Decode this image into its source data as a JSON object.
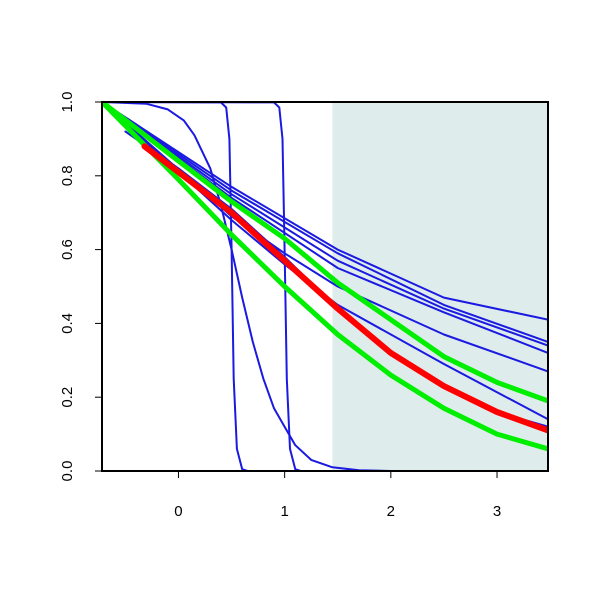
{
  "chart_data": {
    "type": "line",
    "title": "",
    "xlabel": "",
    "ylabel": "",
    "xlim": [
      -0.72,
      3.48
    ],
    "ylim": [
      0,
      1
    ],
    "x_ticks": [
      0,
      1,
      2,
      3
    ],
    "x_tick_labels": [
      "0",
      "1",
      "2",
      "3"
    ],
    "y_ticks": [
      0,
      0.2,
      0.4,
      0.6,
      0.8,
      1
    ],
    "y_tick_labels": [
      "0.0",
      "0.2",
      "0.4",
      "0.6",
      "0.8",
      "1.0"
    ],
    "grid": false,
    "legend": "none",
    "shaded_region": {
      "x_from": 1.45,
      "x_to": 3.48,
      "color": "#deecec"
    },
    "colors": {
      "blue": "#1a1ae0",
      "red": "#ff0000",
      "green": "#00ee00"
    },
    "series": [
      {
        "color_key": "blue",
        "width": 2,
        "points": [
          [
            -0.72,
            1
          ],
          [
            0.4,
            0.999
          ],
          [
            0.45,
            0.985
          ],
          [
            0.48,
            0.9
          ],
          [
            0.5,
            0.6
          ],
          [
            0.52,
            0.25
          ],
          [
            0.55,
            0.06
          ],
          [
            0.6,
            0.005
          ],
          [
            0.65,
            0
          ],
          [
            3.48,
            0
          ]
        ]
      },
      {
        "color_key": "blue",
        "width": 2,
        "points": [
          [
            -0.72,
            1
          ],
          [
            0.9,
            0.999
          ],
          [
            0.95,
            0.985
          ],
          [
            0.98,
            0.9
          ],
          [
            1.0,
            0.6
          ],
          [
            1.02,
            0.25
          ],
          [
            1.05,
            0.06
          ],
          [
            1.1,
            0.005
          ],
          [
            1.15,
            0
          ],
          [
            3.48,
            0
          ]
        ]
      },
      {
        "color_key": "blue",
        "width": 2,
        "points": [
          [
            -0.72,
            1
          ],
          [
            -0.3,
            0.995
          ],
          [
            -0.1,
            0.98
          ],
          [
            0.05,
            0.95
          ],
          [
            0.15,
            0.91
          ],
          [
            0.3,
            0.82
          ],
          [
            0.4,
            0.72
          ],
          [
            0.5,
            0.6
          ],
          [
            0.6,
            0.47
          ],
          [
            0.7,
            0.35
          ],
          [
            0.8,
            0.25
          ],
          [
            0.9,
            0.17
          ],
          [
            1.0,
            0.12
          ],
          [
            1.1,
            0.07
          ],
          [
            1.25,
            0.03
          ],
          [
            1.45,
            0.01
          ],
          [
            1.7,
            0.002
          ],
          [
            2.0,
            0
          ],
          [
            3.48,
            0
          ]
        ]
      },
      {
        "color_key": "blue",
        "width": 2,
        "points": [
          [
            -0.72,
            1
          ],
          [
            0.5,
            0.75
          ],
          [
            1.5,
            0.57
          ],
          [
            2.5,
            0.44
          ],
          [
            3.48,
            0.34
          ]
        ]
      },
      {
        "color_key": "blue",
        "width": 2,
        "points": [
          [
            -0.72,
            1
          ],
          [
            0.5,
            0.76
          ],
          [
            1.5,
            0.59
          ],
          [
            2.5,
            0.45
          ],
          [
            3.48,
            0.35
          ]
        ]
      },
      {
        "color_key": "blue",
        "width": 2,
        "points": [
          [
            -0.72,
            1
          ],
          [
            0.5,
            0.77
          ],
          [
            1.5,
            0.6
          ],
          [
            2.5,
            0.47
          ],
          [
            3.48,
            0.41
          ]
        ]
      },
      {
        "color_key": "blue",
        "width": 2,
        "points": [
          [
            -0.72,
            1
          ],
          [
            0.5,
            0.74
          ],
          [
            1.5,
            0.55
          ],
          [
            2.5,
            0.43
          ],
          [
            3.48,
            0.32
          ]
        ]
      },
      {
        "color_key": "blue",
        "width": 2,
        "points": [
          [
            -0.72,
            1
          ],
          [
            0.5,
            0.69
          ],
          [
            1.0,
            0.59
          ],
          [
            1.5,
            0.5
          ],
          [
            2.5,
            0.37
          ],
          [
            3.48,
            0.27
          ]
        ]
      },
      {
        "color_key": "blue",
        "width": 2,
        "points": [
          [
            -0.72,
            1
          ],
          [
            0.5,
            0.68
          ],
          [
            1.0,
            0.56
          ],
          [
            1.5,
            0.45
          ],
          [
            2.5,
            0.29
          ],
          [
            3.48,
            0.14
          ]
        ]
      },
      {
        "color_key": "blue",
        "width": 2,
        "points": [
          [
            -0.5,
            0.92
          ],
          [
            0,
            0.82
          ],
          [
            0.5,
            0.71
          ],
          [
            1.0,
            0.58
          ],
          [
            1.5,
            0.44
          ],
          [
            2.0,
            0.32
          ],
          [
            2.5,
            0.23
          ],
          [
            3.0,
            0.16
          ],
          [
            3.48,
            0.12
          ]
        ]
      },
      {
        "color_key": "green",
        "width": 5,
        "points": [
          [
            -0.72,
            1
          ],
          [
            0,
            0.84
          ],
          [
            0.5,
            0.73
          ],
          [
            1.0,
            0.63
          ],
          [
            1.5,
            0.51
          ],
          [
            2.0,
            0.41
          ],
          [
            2.5,
            0.31
          ],
          [
            3.0,
            0.24
          ],
          [
            3.48,
            0.19
          ]
        ]
      },
      {
        "color_key": "green",
        "width": 5,
        "points": [
          [
            -0.72,
            1
          ],
          [
            0,
            0.79
          ],
          [
            0.5,
            0.64
          ],
          [
            1.0,
            0.5
          ],
          [
            1.5,
            0.37
          ],
          [
            2.0,
            0.26
          ],
          [
            2.5,
            0.17
          ],
          [
            3.0,
            0.1
          ],
          [
            3.48,
            0.06
          ]
        ]
      },
      {
        "color_key": "red",
        "width": 6,
        "points": [
          [
            -0.32,
            0.88
          ],
          [
            0,
            0.81
          ],
          [
            0.5,
            0.7
          ],
          [
            1.0,
            0.57
          ],
          [
            1.5,
            0.44
          ],
          [
            2.0,
            0.32
          ],
          [
            2.5,
            0.23
          ],
          [
            3.0,
            0.16
          ],
          [
            3.48,
            0.11
          ]
        ]
      }
    ]
  }
}
